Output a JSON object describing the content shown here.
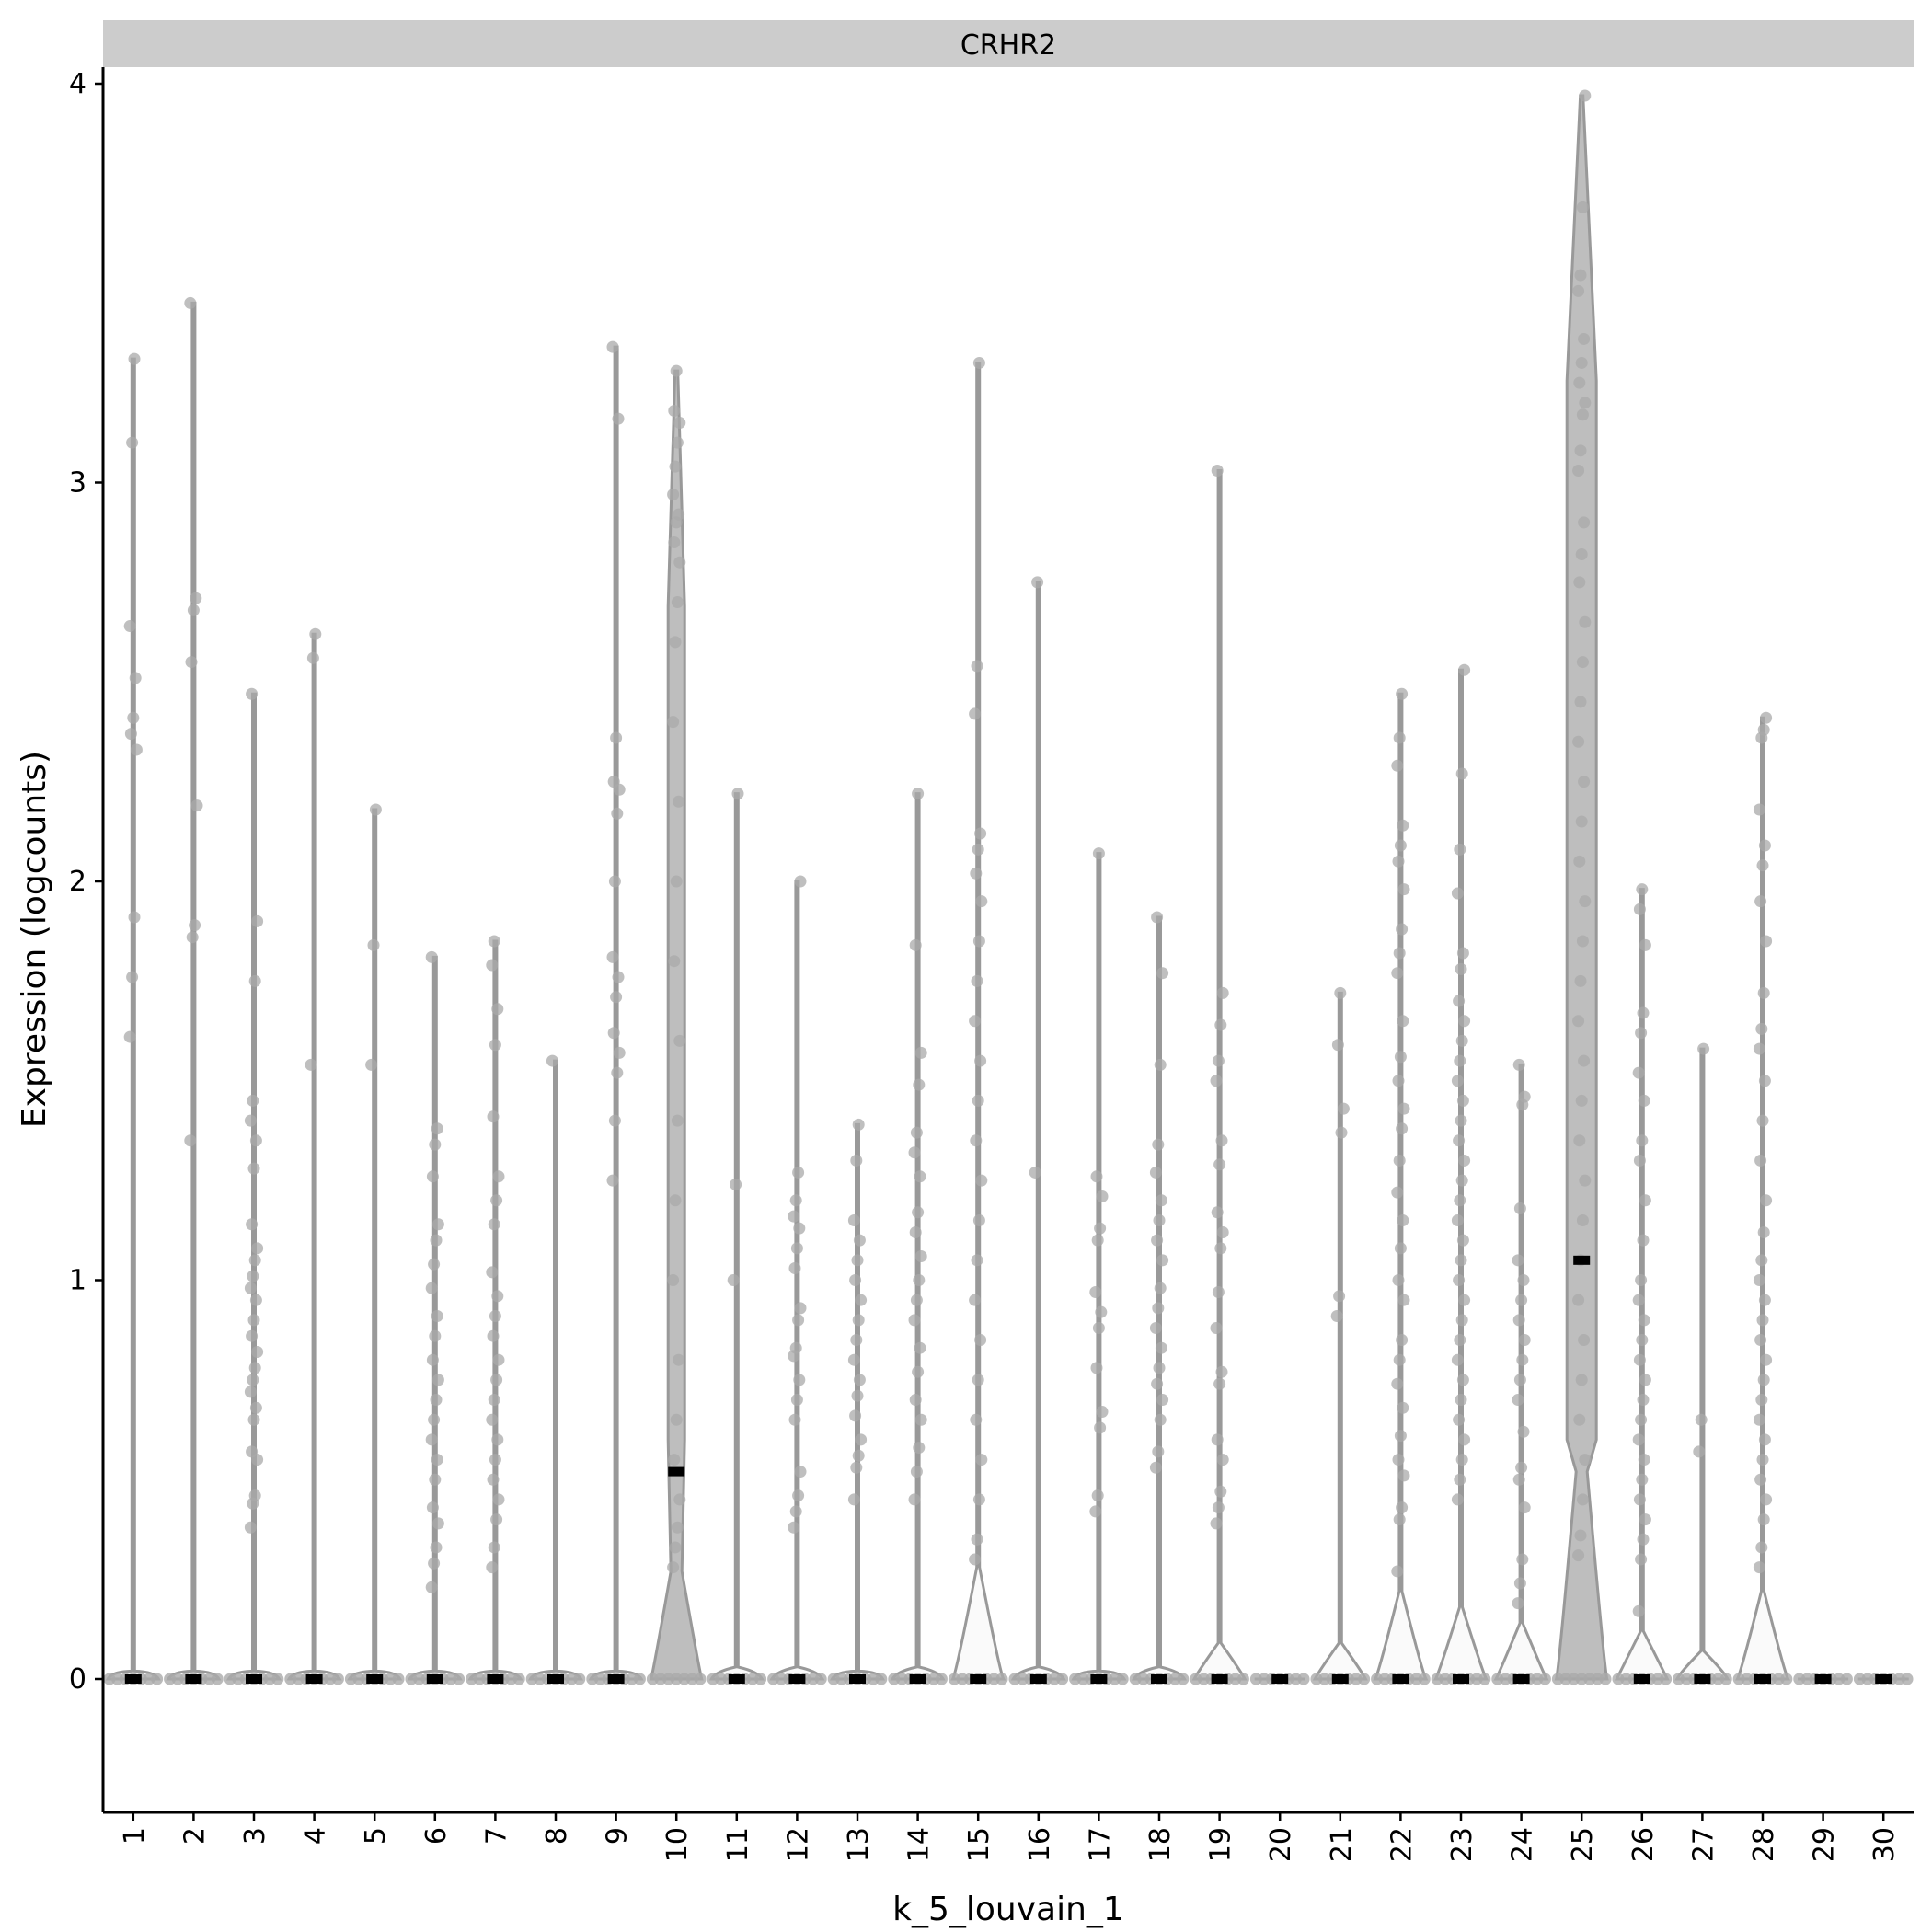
{
  "chart_data": {
    "type": "violin",
    "strip_label": "CRHR2",
    "xlabel": "k_5_louvain_1",
    "ylabel": "Expression (logcounts)",
    "ylim": [
      -0.2,
      4.2
    ],
    "yticks": [
      0,
      1,
      2,
      3,
      4
    ],
    "grid": false,
    "categories": [
      "1",
      "2",
      "3",
      "4",
      "5",
      "6",
      "7",
      "8",
      "9",
      "10",
      "11",
      "12",
      "13",
      "14",
      "15",
      "16",
      "17",
      "18",
      "19",
      "20",
      "21",
      "22",
      "23",
      "24",
      "25",
      "26",
      "27",
      "28",
      "29",
      "30"
    ],
    "median": [
      0,
      0,
      0,
      0,
      0,
      0,
      0,
      0,
      0,
      0.52,
      0,
      0,
      0,
      0,
      0,
      0,
      0,
      0,
      0,
      0,
      0,
      0,
      0,
      0,
      1.05,
      0,
      0,
      0,
      0,
      0
    ],
    "max": [
      3.31,
      3.45,
      2.47,
      2.62,
      2.18,
      1.81,
      1.85,
      1.55,
      3.34,
      3.28,
      2.22,
      2.0,
      1.39,
      2.22,
      3.3,
      2.75,
      2.07,
      1.91,
      3.03,
      0,
      1.72,
      2.47,
      2.53,
      1.54,
      3.97,
      1.98,
      1.58,
      2.41,
      0,
      0
    ],
    "violin_bulge": [
      0.02,
      0.02,
      0.02,
      0.02,
      0.02,
      0.02,
      0.02,
      0.02,
      0.02,
      0.27,
      0.03,
      0.03,
      0.02,
      0.03,
      0.28,
      0.03,
      0.02,
      0.03,
      0.09,
      0,
      0.09,
      0.22,
      0.18,
      0.14,
      0.52,
      0.12,
      0.07,
      0.22,
      0,
      0
    ],
    "points": {
      "1": [
        1.61,
        1.76,
        1.91,
        2.33,
        2.37,
        2.41,
        2.51,
        2.64,
        3.1,
        3.31
      ],
      "2": [
        1.35,
        1.86,
        1.89,
        2.19,
        2.55,
        2.68,
        2.71,
        3.45
      ],
      "3": [
        0.38,
        0.44,
        0.46,
        0.55,
        0.57,
        0.65,
        0.68,
        0.72,
        0.75,
        0.78,
        0.82,
        0.86,
        0.9,
        0.95,
        0.98,
        1.01,
        1.05,
        1.08,
        1.14,
        1.28,
        1.35,
        1.4,
        1.45,
        1.75,
        1.9,
        2.47
      ],
      "4": [
        1.54,
        2.56,
        2.62
      ],
      "5": [
        1.54,
        1.84,
        2.18
      ],
      "6": [
        0.23,
        0.29,
        0.33,
        0.39,
        0.43,
        0.5,
        0.55,
        0.6,
        0.65,
        0.7,
        0.75,
        0.8,
        0.86,
        0.91,
        0.98,
        1.04,
        1.1,
        1.14,
        1.26,
        1.34,
        1.38,
        1.81
      ],
      "7": [
        0.28,
        0.33,
        0.4,
        0.45,
        0.5,
        0.55,
        0.6,
        0.65,
        0.7,
        0.75,
        0.8,
        0.86,
        0.91,
        0.96,
        1.02,
        1.14,
        1.2,
        1.26,
        1.41,
        1.59,
        1.68,
        1.79,
        1.85
      ],
      "8": [
        1.55
      ],
      "9": [
        1.25,
        1.4,
        1.52,
        1.57,
        1.62,
        1.71,
        1.76,
        1.81,
        2.0,
        2.17,
        2.23,
        2.25,
        2.36,
        3.16,
        3.34
      ],
      "10": [
        0.28,
        0.33,
        0.38,
        0.45,
        0.55,
        0.65,
        0.8,
        1.0,
        1.2,
        1.4,
        1.6,
        1.8,
        2.0,
        2.2,
        2.4,
        2.6,
        2.7,
        2.8,
        2.85,
        2.9,
        2.92,
        2.97,
        3.04,
        3.1,
        3.15,
        3.18,
        3.28
      ],
      "11": [
        1.0,
        1.24,
        2.22
      ],
      "12": [
        0.38,
        0.42,
        0.46,
        0.52,
        0.65,
        0.7,
        0.75,
        0.81,
        0.83,
        0.9,
        0.93,
        1.03,
        1.08,
        1.13,
        1.16,
        1.2,
        1.27,
        2.0
      ],
      "13": [
        0.45,
        0.53,
        0.56,
        0.6,
        0.66,
        0.71,
        0.75,
        0.8,
        0.85,
        0.9,
        0.95,
        1.0,
        1.05,
        1.1,
        1.15,
        1.3,
        1.39
      ],
      "14": [
        0.45,
        0.52,
        0.58,
        0.65,
        0.7,
        0.77,
        0.83,
        0.9,
        0.95,
        1.0,
        1.06,
        1.12,
        1.17,
        1.26,
        1.32,
        1.37,
        1.49,
        1.57,
        1.84,
        2.22
      ],
      "15": [
        0.3,
        0.35,
        0.45,
        0.55,
        0.65,
        0.75,
        0.85,
        0.95,
        1.05,
        1.15,
        1.25,
        1.35,
        1.45,
        1.55,
        1.65,
        1.75,
        1.85,
        1.95,
        2.02,
        2.08,
        2.12,
        2.42,
        2.54,
        3.3
      ],
      "16": [
        1.27,
        2.75
      ],
      "17": [
        0.42,
        0.46,
        0.63,
        0.67,
        0.78,
        0.88,
        0.92,
        0.97,
        1.1,
        1.13,
        1.21,
        1.26,
        2.07
      ],
      "18": [
        0.53,
        0.57,
        0.65,
        0.7,
        0.74,
        0.78,
        0.83,
        0.88,
        0.93,
        0.98,
        1.05,
        1.1,
        1.15,
        1.2,
        1.27,
        1.34,
        1.54,
        1.77,
        1.91
      ],
      "19": [
        0.39,
        0.43,
        0.47,
        0.55,
        0.6,
        0.74,
        0.77,
        0.88,
        0.97,
        1.08,
        1.12,
        1.17,
        1.29,
        1.35,
        1.5,
        1.55,
        1.64,
        1.72,
        3.03
      ],
      "21": [
        0.91,
        0.96,
        1.37,
        1.43,
        1.59,
        1.72
      ],
      "22": [
        0.27,
        0.4,
        0.43,
        0.51,
        0.55,
        0.61,
        0.68,
        0.74,
        0.8,
        0.85,
        0.95,
        1.0,
        1.08,
        1.15,
        1.22,
        1.3,
        1.38,
        1.43,
        1.5,
        1.56,
        1.65,
        1.77,
        1.82,
        1.88,
        1.98,
        2.05,
        2.09,
        2.14,
        2.29,
        2.36,
        2.47
      ],
      "23": [
        0.45,
        0.5,
        0.55,
        0.6,
        0.65,
        0.7,
        0.75,
        0.8,
        0.85,
        0.9,
        0.95,
        1.0,
        1.05,
        1.1,
        1.15,
        1.2,
        1.25,
        1.3,
        1.35,
        1.4,
        1.45,
        1.5,
        1.55,
        1.6,
        1.65,
        1.7,
        1.78,
        1.82,
        1.97,
        2.08,
        2.27,
        2.53
      ],
      "24": [
        0.19,
        0.24,
        0.3,
        0.43,
        0.5,
        0.53,
        0.62,
        0.7,
        0.75,
        0.8,
        0.85,
        0.9,
        0.95,
        1.0,
        1.05,
        1.18,
        1.44,
        1.46,
        1.54
      ],
      "25": [
        0.31,
        0.36,
        0.45,
        0.55,
        0.65,
        0.75,
        0.85,
        0.95,
        1.05,
        1.15,
        1.25,
        1.35,
        1.45,
        1.55,
        1.65,
        1.75,
        1.85,
        1.95,
        2.05,
        2.15,
        2.25,
        2.35,
        2.45,
        2.55,
        2.65,
        2.75,
        2.82,
        2.9,
        3.03,
        3.08,
        3.17,
        3.2,
        3.25,
        3.3,
        3.36,
        3.48,
        3.52,
        3.69,
        3.97
      ],
      "26": [
        0.17,
        0.3,
        0.35,
        0.4,
        0.45,
        0.5,
        0.55,
        0.6,
        0.65,
        0.7,
        0.75,
        0.8,
        0.85,
        0.9,
        0.95,
        1.0,
        1.1,
        1.2,
        1.3,
        1.35,
        1.45,
        1.52,
        1.62,
        1.67,
        1.84,
        1.93,
        1.98
      ],
      "27": [
        0.57,
        0.65,
        1.58
      ],
      "28": [
        0.28,
        0.33,
        0.4,
        0.45,
        0.5,
        0.55,
        0.6,
        0.65,
        0.7,
        0.75,
        0.8,
        0.85,
        0.9,
        0.95,
        1.0,
        1.05,
        1.12,
        1.2,
        1.3,
        1.4,
        1.5,
        1.58,
        1.63,
        1.72,
        1.85,
        1.95,
        2.04,
        2.09,
        2.18,
        2.36,
        2.38,
        2.41
      ]
    }
  }
}
